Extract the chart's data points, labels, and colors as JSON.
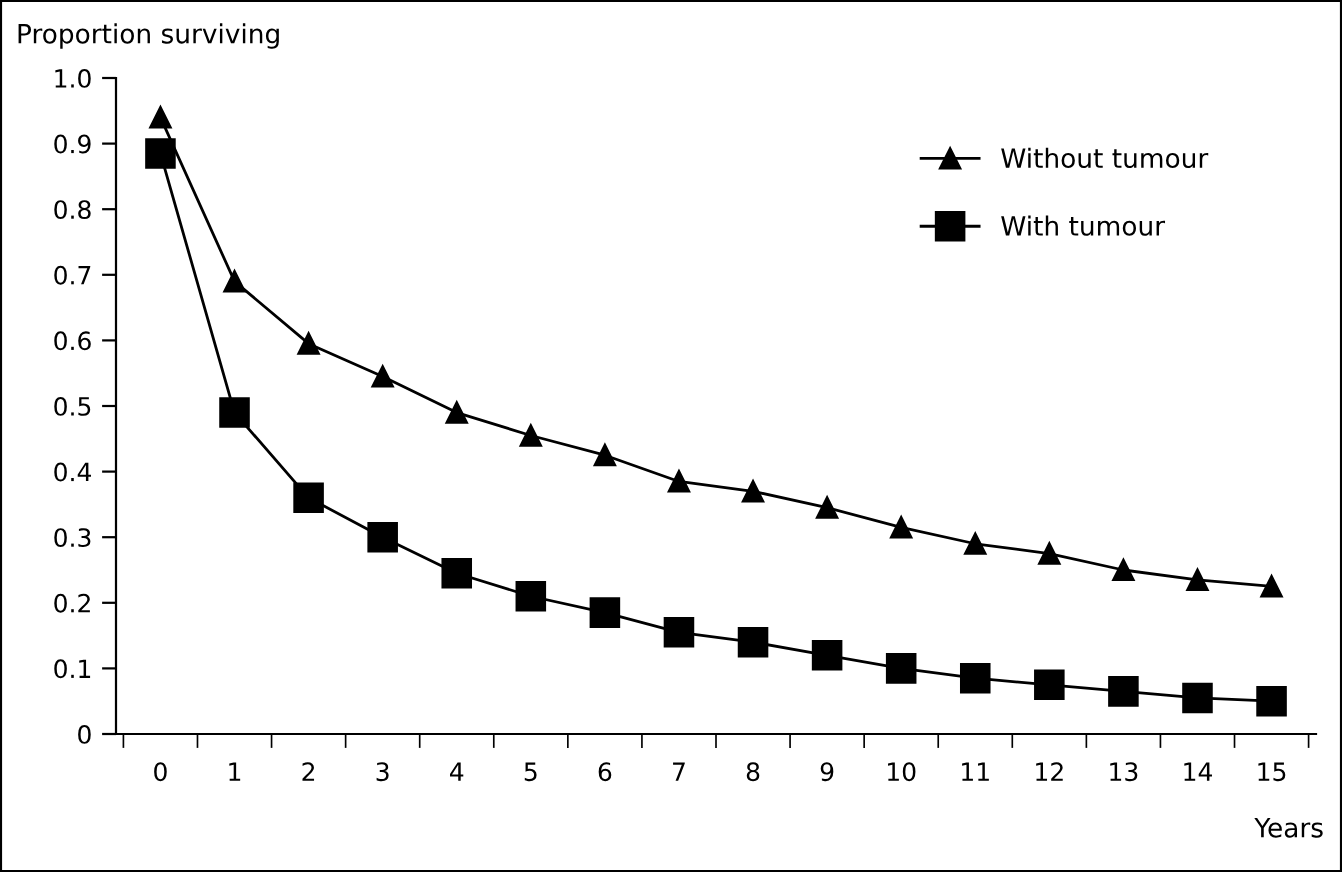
{
  "chart_data": {
    "type": "line",
    "ylabel": "Proportion surviving",
    "xlabel": "Years",
    "categories": [
      "0",
      "1",
      "2",
      "3",
      "4",
      "5",
      "6",
      "7",
      "8",
      "9",
      "10",
      "11",
      "12",
      "13",
      "14",
      "15"
    ],
    "series": [
      {
        "name": "Without tumour",
        "color": "#000000",
        "marker": "triangle",
        "values": [
          0.94,
          0.69,
          0.595,
          0.545,
          0.49,
          0.455,
          0.425,
          0.385,
          0.37,
          0.345,
          0.315,
          0.29,
          0.275,
          0.25,
          0.235,
          0.225
        ]
      },
      {
        "name": "With tumour",
        "color": "#000000",
        "marker": "square",
        "values": [
          0.885,
          0.49,
          0.36,
          0.3,
          0.245,
          0.21,
          0.185,
          0.155,
          0.14,
          0.12,
          0.1,
          0.085,
          0.075,
          0.065,
          0.055,
          0.05
        ]
      }
    ],
    "ylim": [
      0,
      1.0
    ],
    "yticks": [
      0,
      0.1,
      0.2,
      0.3,
      0.4,
      0.5,
      0.6,
      0.7,
      0.8,
      0.9,
      {
        "value": 1.0,
        "label": "1.0"
      }
    ],
    "grid": false,
    "legend": "top right",
    "line_style": "solid"
  }
}
